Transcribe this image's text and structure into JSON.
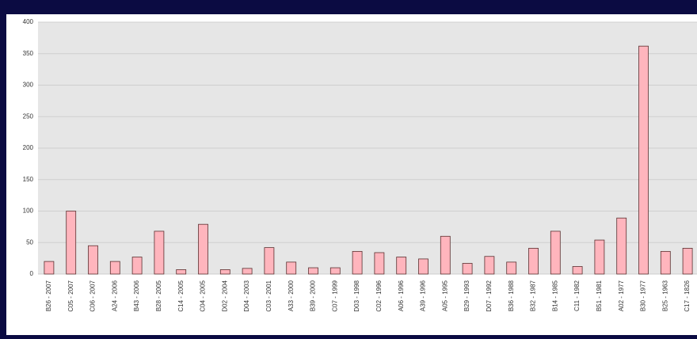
{
  "chart_data": {
    "type": "bar",
    "categories": [
      "B26 - 2007",
      "C05 - 2007",
      "C06 - 2007",
      "A24 - 2006",
      "B43 - 2006",
      "B28 - 2005",
      "C14 - 2005",
      "C04 - 2005",
      "D02 - 2004",
      "D04 - 2003",
      "C03 - 2001",
      "A33 - 2000",
      "B39 - 2000",
      "C07 - 1999",
      "D03 - 1998",
      "C02 - 1996",
      "A06 - 1996",
      "A39 - 1996",
      "A05 - 1995",
      "B29 - 1993",
      "D07 - 1992",
      "B36 - 1988",
      "B32 - 1987",
      "B14 - 1985",
      "C11 - 1982",
      "B51 - 1981",
      "A02 - 1977",
      "B30 - 1977",
      "B25 - 1963",
      "C17 - 1826"
    ],
    "values": [
      20,
      100,
      45,
      20,
      27,
      68,
      7,
      79,
      7,
      9,
      42,
      19,
      10,
      10,
      36,
      34,
      27,
      24,
      60,
      17,
      28,
      19,
      41,
      68,
      12,
      54,
      89,
      362,
      36,
      41
    ],
    "color": "#ffb5bd",
    "ylim": [
      0,
      400
    ],
    "yticks": [
      0,
      50,
      100,
      150,
      200,
      250,
      300,
      350,
      400
    ],
    "grid": true
  }
}
